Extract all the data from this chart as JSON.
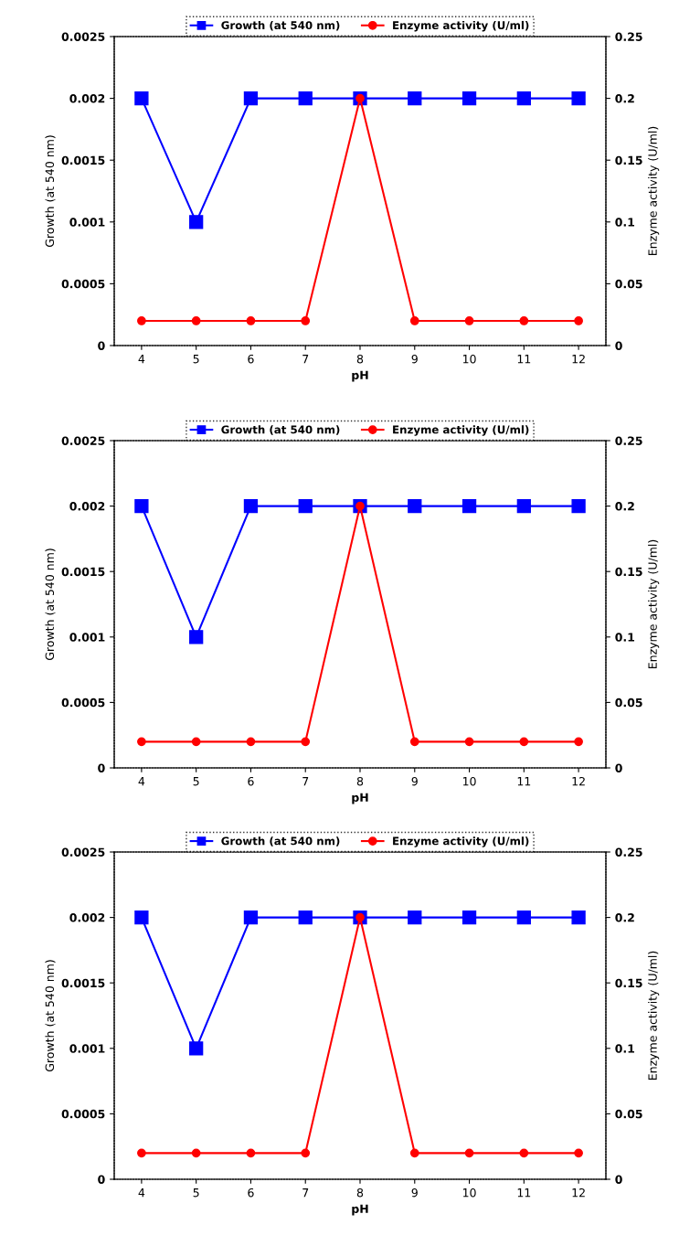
{
  "chart_data": [
    {
      "type": "line",
      "xlabel": "pH",
      "ylabel": "Growth (at 540 nm)",
      "y2label": "Enzyme activity (U/ml)",
      "categories": [
        "4",
        "5",
        "6",
        "7",
        "8",
        "9",
        "10",
        "11",
        "12"
      ],
      "series": [
        {
          "name": "Growth (at 540 nm)",
          "color": "#0000ff",
          "marker": "square",
          "values": [
            0.002,
            0.001,
            0.002,
            0.002,
            0.002,
            0.002,
            0.002,
            0.002,
            0.002
          ]
        },
        {
          "name": "Enzyme activity (U/ml)",
          "color": "#ff0000",
          "marker": "circle",
          "axis": "y2",
          "values": [
            0.02,
            0.02,
            0.02,
            0.02,
            0.2,
            0.02,
            0.02,
            0.02,
            0.02
          ]
        }
      ],
      "ylim": [
        0,
        0.0025
      ],
      "yticks": [
        0,
        0.0005,
        0.001,
        0.0015,
        0.002,
        0.0025
      ],
      "y2lim": [
        0,
        0.25
      ],
      "y2ticks": [
        0,
        0.05,
        0.1,
        0.15,
        0.2,
        0.25
      ],
      "legend": "top",
      "grid": false
    },
    {
      "type": "line",
      "xlabel": "pH",
      "ylabel": "Growth (at 540 nm)",
      "y2label": "Enzyme activity (U/ml)",
      "categories": [
        "4",
        "5",
        "6",
        "7",
        "8",
        "9",
        "10",
        "11",
        "12"
      ],
      "series": [
        {
          "name": "Growth (at 540 nm)",
          "color": "#0000ff",
          "marker": "square",
          "values": [
            0.002,
            0.001,
            0.002,
            0.002,
            0.002,
            0.002,
            0.002,
            0.002,
            0.002
          ]
        },
        {
          "name": "Enzyme activity (U/ml)",
          "color": "#ff0000",
          "marker": "circle",
          "axis": "y2",
          "values": [
            0.02,
            0.02,
            0.02,
            0.02,
            0.2,
            0.02,
            0.02,
            0.02,
            0.02
          ]
        }
      ],
      "ylim": [
        0,
        0.0025
      ],
      "yticks": [
        0,
        0.0005,
        0.001,
        0.0015,
        0.002,
        0.0025
      ],
      "y2lim": [
        0,
        0.25
      ],
      "y2ticks": [
        0,
        0.05,
        0.1,
        0.15,
        0.2,
        0.25
      ],
      "legend": "top",
      "grid": false
    },
    {
      "type": "line",
      "xlabel": "pH",
      "ylabel": "Growth (at 540 nm)",
      "y2label": "Enzyme activity (U/ml)",
      "categories": [
        "4",
        "5",
        "6",
        "7",
        "8",
        "9",
        "10",
        "11",
        "12"
      ],
      "series": [
        {
          "name": "Growth (at 540 nm)",
          "color": "#0000ff",
          "marker": "square",
          "values": [
            0.002,
            0.001,
            0.002,
            0.002,
            0.002,
            0.002,
            0.002,
            0.002,
            0.002
          ]
        },
        {
          "name": "Enzyme activity (U/ml)",
          "color": "#ff0000",
          "marker": "circle",
          "axis": "y2",
          "values": [
            0.02,
            0.02,
            0.02,
            0.02,
            0.2,
            0.02,
            0.02,
            0.02,
            0.02
          ]
        }
      ],
      "ylim": [
        0,
        0.0025
      ],
      "yticks": [
        0,
        0.0005,
        0.001,
        0.0015,
        0.002,
        0.0025
      ],
      "y2lim": [
        0,
        0.25
      ],
      "y2ticks": [
        0,
        0.05,
        0.1,
        0.15,
        0.2,
        0.25
      ],
      "legend": "top",
      "grid": false
    }
  ]
}
